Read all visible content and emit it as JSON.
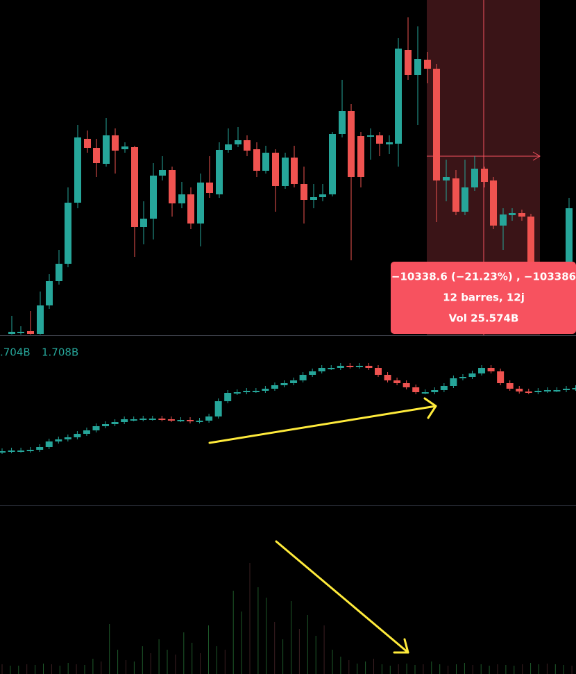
{
  "indicator_values": [
    ".704B",
    "1.708B"
  ],
  "tooltip": {
    "change": "−10338.6 (−21.23%) , −103386",
    "bars": "12 barres, 12j",
    "volume": "Vol 25.574B"
  }
}
